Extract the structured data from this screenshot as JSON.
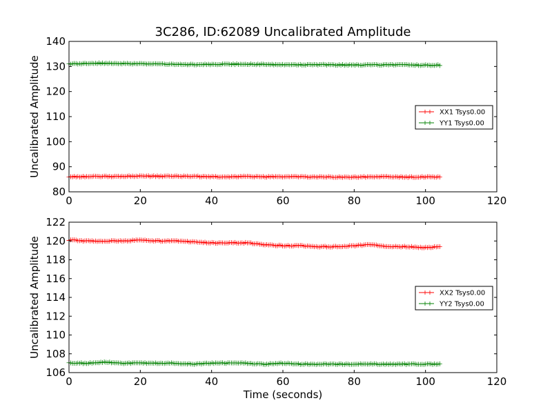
{
  "figure": {
    "title": "3C286, ID:62089 Uncalibrated Amplitude",
    "xlabel": "Time (seconds)"
  },
  "chart_data": [
    {
      "type": "line",
      "panel": "top",
      "title": "3C286, ID:62089 Uncalibrated Amplitude",
      "xlabel": "",
      "ylabel": "Uncalibrated Amplitude",
      "xlim": [
        0,
        120
      ],
      "ylim": [
        80,
        140
      ],
      "xticks": [
        0,
        20,
        40,
        60,
        80,
        100,
        120
      ],
      "yticks": [
        80,
        90,
        100,
        110,
        120,
        130,
        140
      ],
      "grid": false,
      "legend_position": "center-right",
      "marker": "+",
      "x": [
        0,
        5,
        10,
        15,
        20,
        25,
        30,
        35,
        40,
        45,
        50,
        55,
        60,
        65,
        70,
        75,
        80,
        85,
        90,
        95,
        100,
        104
      ],
      "series": [
        {
          "name": "XX1 Tsys0.00",
          "color": "#ff0000",
          "values": [
            86.0,
            86.1,
            86.1,
            86.2,
            86.3,
            86.2,
            86.2,
            86.2,
            86.0,
            86.0,
            86.1,
            86.0,
            86.0,
            86.0,
            85.9,
            85.9,
            85.9,
            86.0,
            86.0,
            85.9,
            85.9,
            85.9
          ]
        },
        {
          "name": "YY1 Tsys0.00",
          "color": "#008000",
          "values": [
            131.0,
            131.2,
            131.3,
            131.2,
            131.1,
            131.0,
            130.9,
            130.8,
            130.8,
            130.9,
            130.9,
            130.8,
            130.7,
            130.7,
            130.7,
            130.6,
            130.6,
            130.6,
            130.7,
            130.6,
            130.5,
            130.5
          ]
        }
      ]
    },
    {
      "type": "line",
      "panel": "bottom",
      "title": "",
      "xlabel": "Time (seconds)",
      "ylabel": "Uncalibrated Amplitude",
      "xlim": [
        0,
        120
      ],
      "ylim": [
        106,
        122
      ],
      "xticks": [
        0,
        20,
        40,
        60,
        80,
        100,
        120
      ],
      "yticks": [
        106,
        108,
        110,
        112,
        114,
        116,
        118,
        120,
        122
      ],
      "grid": false,
      "legend_position": "center-right",
      "marker": "+",
      "x": [
        0,
        5,
        10,
        15,
        20,
        25,
        30,
        35,
        40,
        45,
        50,
        55,
        60,
        65,
        70,
        75,
        80,
        85,
        90,
        95,
        100,
        104
      ],
      "series": [
        {
          "name": "XX2 Tsys0.00",
          "color": "#ff0000",
          "values": [
            120.1,
            120.0,
            120.0,
            120.0,
            120.1,
            120.0,
            120.0,
            119.9,
            119.8,
            119.8,
            119.8,
            119.6,
            119.5,
            119.5,
            119.4,
            119.4,
            119.5,
            119.6,
            119.4,
            119.4,
            119.3,
            119.4
          ]
        },
        {
          "name": "YY2 Tsys0.00",
          "color": "#008000",
          "values": [
            107.0,
            107.0,
            107.1,
            107.0,
            107.0,
            107.0,
            107.0,
            106.9,
            107.0,
            107.0,
            107.0,
            106.9,
            107.0,
            106.9,
            106.9,
            106.9,
            106.9,
            106.9,
            106.9,
            106.9,
            106.9,
            106.9
          ]
        }
      ]
    }
  ]
}
